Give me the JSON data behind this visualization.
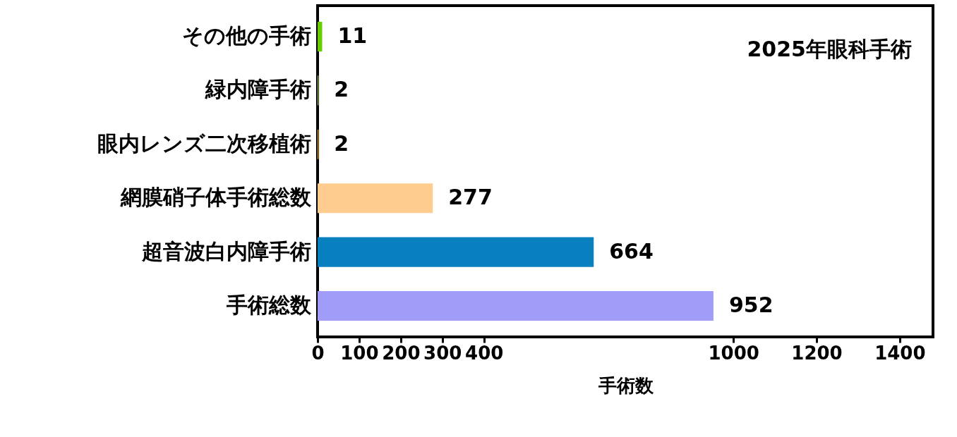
{
  "chart_data": {
    "type": "bar",
    "orientation": "horizontal",
    "title": "2025年眼科手術",
    "xlabel": "手術数",
    "categories": [
      "その他の手術",
      "緑内障手術",
      "眼内レンズ二次移植術",
      "網膜硝子体手術総数",
      "超音波白内障手術",
      "手術総数"
    ],
    "values": [
      11,
      2,
      2,
      277,
      664,
      952
    ],
    "colors": [
      "#66cc00",
      "#a9d15a",
      "#ffc000",
      "#ffcc90",
      "#0880c0",
      "#a09cf8"
    ],
    "xlim": [
      0,
      1480
    ],
    "xticks": [
      0,
      100,
      200,
      300,
      400,
      1000,
      1200,
      1400
    ],
    "data_labels": true,
    "grid": false,
    "legend": false
  }
}
